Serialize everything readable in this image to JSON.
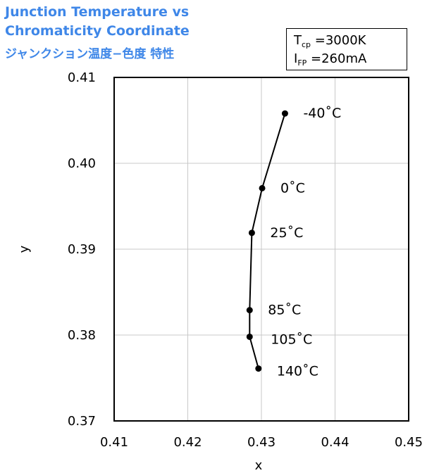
{
  "title_line1": "Junction Temperature vs",
  "title_line2": "Chromaticity Coordinate",
  "title_line3": "ジャンクション温度−色度 特性",
  "conditions": {
    "tcp_symbol": "T",
    "tcp_sub": "cp",
    "tcp_value": " =3000K",
    "ifp_symbol": "I",
    "ifp_sub": "FP",
    "ifp_value": " =260mA"
  },
  "colors": {
    "title": "#3f87e8",
    "line": "#000000",
    "grid": "#c8c8c8"
  },
  "chart_data": {
    "type": "line",
    "xlabel": "x",
    "ylabel": "y",
    "xlim": [
      0.41,
      0.45
    ],
    "ylim": [
      0.37,
      0.41
    ],
    "x_ticks": [
      "0.41",
      "0.42",
      "0.43",
      "0.44",
      "0.45"
    ],
    "y_ticks": [
      "0.37",
      "0.38",
      "0.39",
      "0.40",
      "0.41"
    ],
    "grid": true,
    "series": [
      {
        "points": [
          {
            "x": 0.4332,
            "y": 0.4058,
            "label": "-40˚C"
          },
          {
            "x": 0.4301,
            "y": 0.3971,
            "label": "0˚C"
          },
          {
            "x": 0.4287,
            "y": 0.3919,
            "label": "25˚C"
          },
          {
            "x": 0.4284,
            "y": 0.3829,
            "label": "85˚C"
          },
          {
            "x": 0.4284,
            "y": 0.3798,
            "label": "105˚C"
          },
          {
            "x": 0.4296,
            "y": 0.3761,
            "label": "140˚C"
          }
        ]
      }
    ]
  }
}
